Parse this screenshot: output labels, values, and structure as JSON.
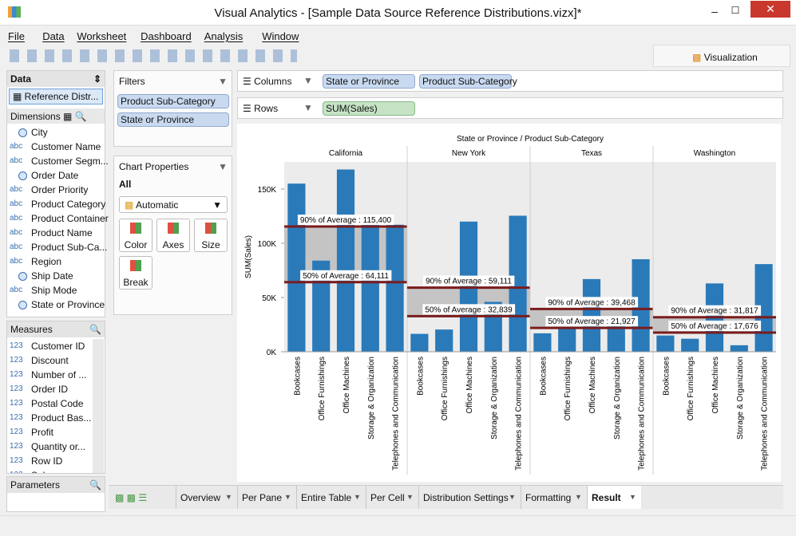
{
  "window": {
    "title": "Visual Analytics - [Sample Data Source Reference Distributions.vizx]*"
  },
  "menu": [
    "File",
    "Data",
    "Worksheet",
    "Dashboard",
    "Analysis",
    "Window"
  ],
  "toolbar": {
    "tab": "Visualization"
  },
  "data_panel": {
    "title": "Data",
    "source": "Reference Distr...",
    "dimensions_title": "Dimensions",
    "dimensions": [
      {
        "name": "City"
      },
      {
        "icon": "abc",
        "name": "Customer Name"
      },
      {
        "icon": "abc",
        "name": "Customer Segm..."
      },
      {
        "name": "Order Date"
      },
      {
        "icon": "abc",
        "name": "Order Priority"
      },
      {
        "icon": "abc",
        "name": "Product Category"
      },
      {
        "icon": "abc",
        "name": "Product Container"
      },
      {
        "icon": "abc",
        "name": "Product Name"
      },
      {
        "icon": "abc",
        "name": "Product Sub-Ca..."
      },
      {
        "icon": "abc",
        "name": "Region"
      },
      {
        "name": "Ship Date"
      },
      {
        "icon": "abc",
        "name": "Ship Mode"
      },
      {
        "name": "State or Province"
      }
    ],
    "measures_title": "Measures",
    "measures": [
      {
        "icon": "123",
        "name": "Customer ID"
      },
      {
        "icon": "123",
        "name": "Discount"
      },
      {
        "icon": "123",
        "name": "Number of ..."
      },
      {
        "icon": "123",
        "name": "Order ID"
      },
      {
        "icon": "123",
        "name": "Postal Code"
      },
      {
        "icon": "123",
        "name": "Product Bas..."
      },
      {
        "icon": "123",
        "name": "Profit"
      },
      {
        "icon": "123",
        "name": "Quantity or..."
      },
      {
        "icon": "123",
        "name": "Row ID"
      },
      {
        "icon": "123",
        "name": "Sales"
      }
    ],
    "parameters_title": "Parameters"
  },
  "filters": {
    "title": "Filters",
    "items": [
      "Product Sub-Category",
      "State or Province"
    ]
  },
  "chart_properties": {
    "title": "Chart Properties",
    "scope": "All",
    "mark_type": "Automatic",
    "buttons": [
      "Color",
      "Axes",
      "Size",
      "Break"
    ]
  },
  "shelves": {
    "columns": {
      "label": "Columns",
      "pills": [
        "State or Province",
        "Product Sub-Category"
      ]
    },
    "rows": {
      "label": "Rows",
      "pills": [
        "SUM(Sales)"
      ]
    }
  },
  "chart_data": {
    "type": "bar",
    "title": "State or Province / Product Sub-Category",
    "y_label": "SUM(Sales)",
    "categories": [
      "Bookcases",
      "Office Furnishings",
      "Office Machines",
      "Storage & Organization",
      "Telephones and Communication"
    ],
    "color": "#2a7ab9",
    "band_color": "#c4c4c4",
    "line_color": "#7a1c1c",
    "ylim": [
      0,
      175000
    ],
    "yticks": [
      {
        "value": 0,
        "label": "0K"
      },
      {
        "value": 50000,
        "label": "50K"
      },
      {
        "value": 100000,
        "label": "100K"
      },
      {
        "value": 150000,
        "label": "150K"
      }
    ],
    "panes": [
      {
        "name": "California",
        "values": [
          155000,
          84000,
          168000,
          117000,
          117100
        ],
        "reference_lines": [
          {
            "value": 115400,
            "label": "90% of Average : 115,400"
          },
          {
            "value": 64111,
            "label": "50% of Average : 64,111"
          }
        ]
      },
      {
        "name": "New York",
        "values": [
          16500,
          20500,
          120000,
          46000,
          125400
        ],
        "reference_lines": [
          {
            "value": 59111,
            "label": "90% of Average : 59,111"
          },
          {
            "value": 32839,
            "label": "50% of Average : 32,839"
          }
        ]
      },
      {
        "name": "Texas",
        "values": [
          17000,
          23000,
          67000,
          27000,
          85300
        ],
        "reference_lines": [
          {
            "value": 39468,
            "label": "90% of Average : 39,468"
          },
          {
            "value": 21927,
            "label": "50% of Average : 21,927"
          }
        ]
      },
      {
        "name": "Washington",
        "values": [
          15000,
          12000,
          63000,
          6000,
          80800
        ],
        "reference_lines": [
          {
            "value": 31817,
            "label": "90% of Average : 31,817"
          },
          {
            "value": 17676,
            "label": "50% of Average : 17,676"
          }
        ]
      }
    ]
  },
  "tabs": {
    "items": [
      "Overview",
      "Per Pane",
      "Entire Table",
      "Per Cell",
      "Distribution Settings",
      "Formatting",
      "Result"
    ],
    "active": 6
  }
}
